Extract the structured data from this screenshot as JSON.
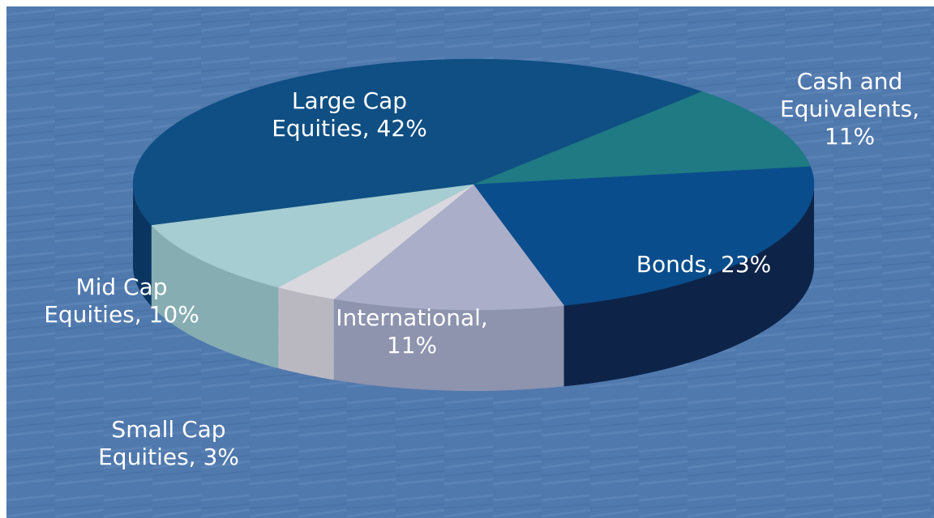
{
  "chart_data": {
    "type": "pie",
    "style": "3d",
    "slices": [
      {
        "label": "Large Cap Equities, 42%",
        "value": 42,
        "color": "#0f4f83"
      },
      {
        "label": "Cash and Equivalents, 11%",
        "value": 11,
        "color": "#1f7a83"
      },
      {
        "label": "Bonds, 23%",
        "value": 23,
        "color": "#0a4d8c"
      },
      {
        "label": "International, 11%",
        "value": 11,
        "color": "#aaaec9"
      },
      {
        "label": "Small Cap Equities, 3%",
        "value": 3,
        "color": "#d9d8de"
      },
      {
        "label": "Mid Cap Equities, 10%",
        "value": 10,
        "color": "#a6cdd1"
      }
    ],
    "side_colors": [
      "#0b3561",
      "#135560",
      "#0d2448",
      "#8e93ae",
      "#b9b8c0",
      "#86adb2"
    ]
  },
  "labels": {
    "large_cap": "Large Cap\nEquities, 42%",
    "cash": "Cash and\nEquivalents,\n11%",
    "bonds": "Bonds, 23%",
    "international": "International,\n11%",
    "mid_cap": "Mid Cap\nEquities, 10%",
    "small_cap": "Small Cap\nEquities, 3%"
  },
  "background_color": "#4f78ad"
}
